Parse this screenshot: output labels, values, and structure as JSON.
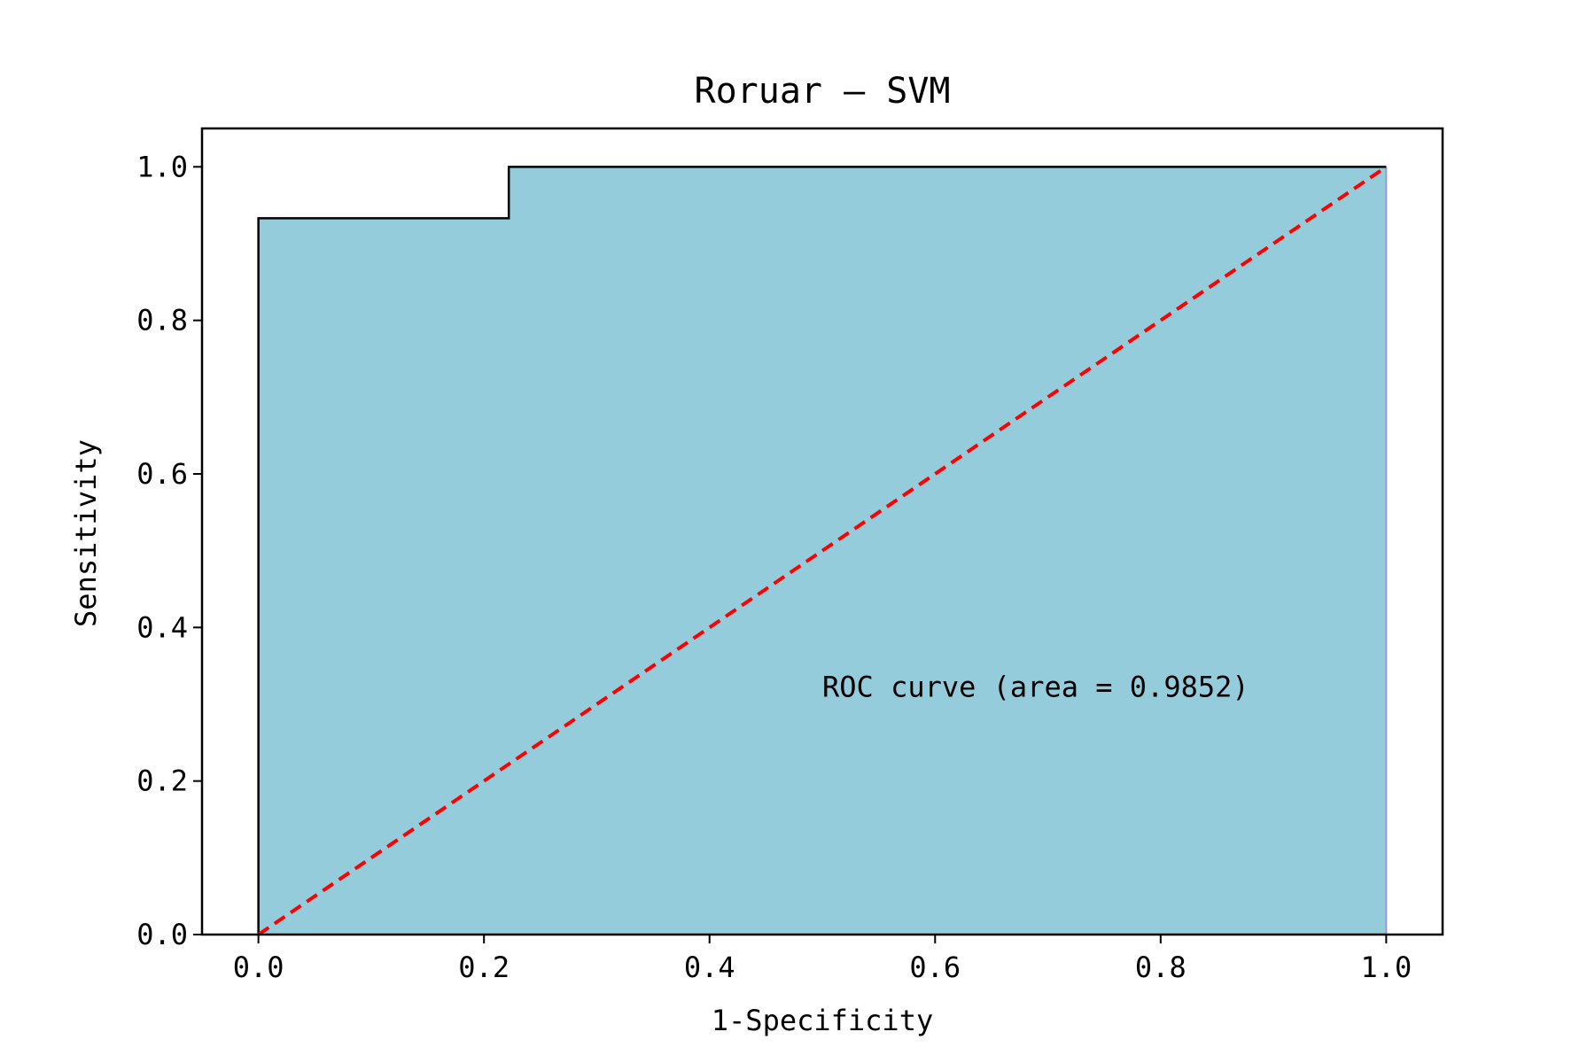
{
  "chart_data": {
    "type": "line",
    "title": "Roruar — SVM",
    "xlabel": "1-Specificity",
    "ylabel": "Sensitivity",
    "xlim": [
      -0.05,
      1.05
    ],
    "ylim": [
      0.0,
      1.05
    ],
    "x_ticks": [
      "0.0",
      "0.2",
      "0.4",
      "0.6",
      "0.8",
      "1.0"
    ],
    "y_ticks": [
      "0.0",
      "0.2",
      "0.4",
      "0.6",
      "0.8",
      "1.0"
    ],
    "grid": false,
    "annotation": "ROC curve (area = 0.9852)",
    "series": [
      {
        "kind": "roc",
        "x": [
          0.0,
          0.0,
          0.222,
          0.222,
          1.0
        ],
        "y": [
          0.0,
          0.933,
          0.933,
          1.0,
          1.0
        ],
        "line_color": "#000000",
        "fill_color": "#94ccdb"
      },
      {
        "kind": "chance-diagonal",
        "x": [
          0.0,
          1.0
        ],
        "y": [
          0.0,
          1.0
        ],
        "line_color": "#ff0000",
        "line_style": "dashed"
      }
    ]
  }
}
